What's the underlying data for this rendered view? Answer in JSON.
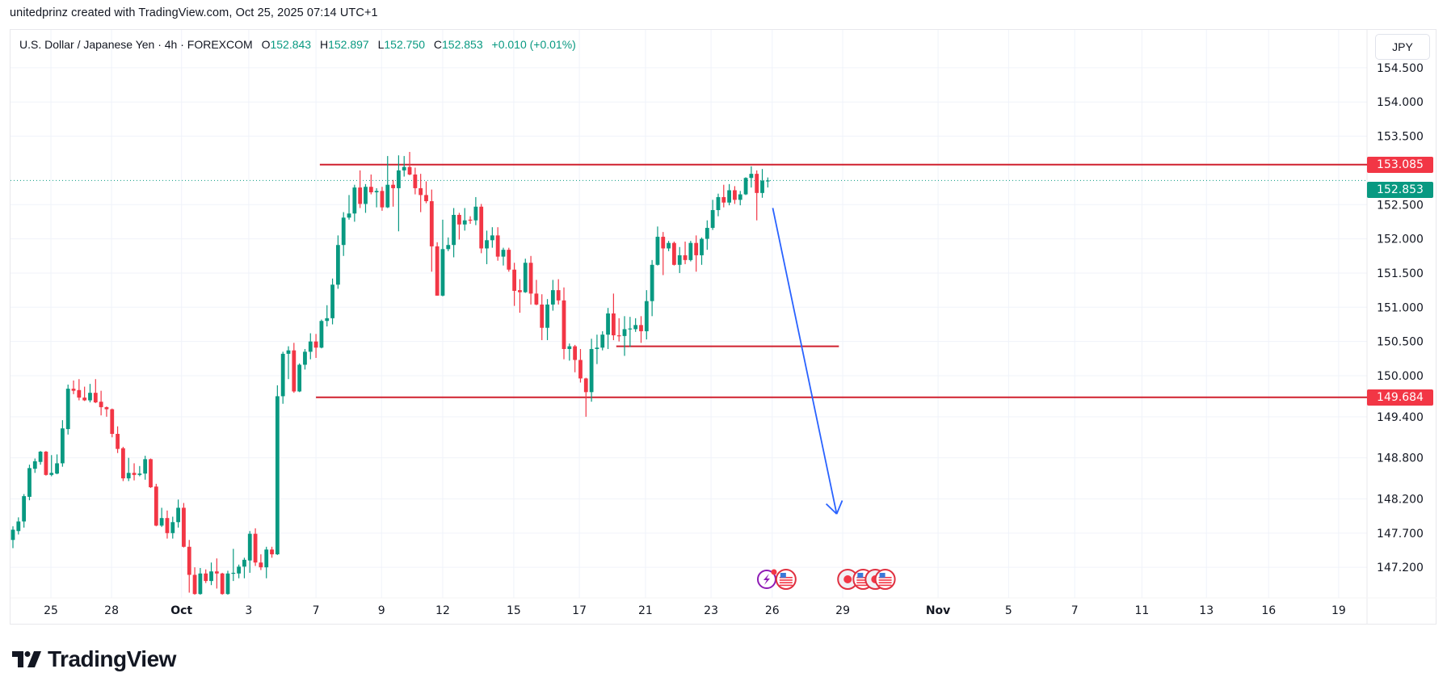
{
  "attribution": "unitedprinz created with TradingView.com, Oct 25, 2025 07:14 UTC+1",
  "legend": {
    "symbol": "U.S. Dollar / Japanese Yen · 4h · FOREXCOM",
    "o_label": "O",
    "o": "152.843",
    "h_label": "H",
    "h": "152.897",
    "l_label": "L",
    "l": "152.750",
    "c_label": "C",
    "c": "152.853",
    "change": "+0.010 (+0.01%)"
  },
  "currency": "JPY",
  "colors": {
    "up": "#089981",
    "down": "#f23645",
    "level": "#d0202f",
    "arrow": "#2962ff",
    "grid": "#f0f3fa"
  },
  "price_labels": {
    "resistance": "153.085",
    "last": "152.853",
    "support": "149.684"
  },
  "logo_text": "TradingView",
  "chart_data": {
    "type": "candlestick",
    "title": "U.S. Dollar / Japanese Yen · 4h · FOREXCOM",
    "ylim": [
      146.8,
      154.7
    ],
    "price_ticks": [
      "154.500",
      "154.000",
      "153.500",
      "152.500",
      "152.000",
      "151.500",
      "151.000",
      "150.500",
      "150.000",
      "149.400",
      "148.800",
      "148.200",
      "147.700",
      "147.200"
    ],
    "time_ticks": [
      {
        "label": "25",
        "bold": false,
        "bar": 6.9
      },
      {
        "label": "28",
        "bold": false,
        "bar": 17.9
      },
      {
        "label": "Oct",
        "bold": true,
        "bar": 30.6
      },
      {
        "label": "3",
        "bold": false,
        "bar": 42.8
      },
      {
        "label": "7",
        "bold": false,
        "bar": 55
      },
      {
        "label": "9",
        "bold": false,
        "bar": 66.9
      },
      {
        "label": "12",
        "bold": false,
        "bar": 78
      },
      {
        "label": "15",
        "bold": false,
        "bar": 90.9
      },
      {
        "label": "17",
        "bold": false,
        "bar": 102.8
      },
      {
        "label": "21",
        "bold": false,
        "bar": 114.8
      },
      {
        "label": "23",
        "bold": false,
        "bar": 126.7
      },
      {
        "label": "26",
        "bold": false,
        "bar": 137.8
      },
      {
        "label": "29",
        "bold": false,
        "bar": 150.6
      },
      {
        "label": "Nov",
        "bold": true,
        "bar": 167.9
      },
      {
        "label": "5",
        "bold": false,
        "bar": 180.7
      },
      {
        "label": "7",
        "bold": false,
        "bar": 192.7
      },
      {
        "label": "11",
        "bold": false,
        "bar": 204.9
      },
      {
        "label": "13",
        "bold": false,
        "bar": 216.6
      },
      {
        "label": "16",
        "bold": false,
        "bar": 227.9
      },
      {
        "label": "19",
        "bold": false,
        "bar": 240.6
      }
    ],
    "candles_ohlc": [
      [
        147.6,
        147.8,
        147.48,
        147.75
      ],
      [
        147.73,
        147.93,
        147.68,
        147.87
      ],
      [
        147.87,
        148.27,
        147.78,
        148.24
      ],
      [
        148.23,
        148.7,
        148.18,
        148.65
      ],
      [
        148.64,
        148.79,
        148.58,
        148.75
      ],
      [
        148.74,
        148.9,
        148.7,
        148.89
      ],
      [
        148.89,
        148.9,
        148.54,
        148.55
      ],
      [
        148.55,
        148.84,
        148.53,
        148.58
      ],
      [
        148.57,
        148.85,
        148.56,
        148.72
      ],
      [
        148.72,
        149.35,
        148.67,
        149.23
      ],
      [
        149.22,
        149.87,
        149.14,
        149.81
      ],
      [
        149.81,
        149.93,
        149.73,
        149.78
      ],
      [
        149.79,
        149.95,
        149.64,
        149.68
      ],
      [
        149.68,
        149.84,
        149.63,
        149.64
      ],
      [
        149.64,
        149.88,
        149.61,
        149.75
      ],
      [
        149.75,
        149.95,
        149.6,
        149.61
      ],
      [
        149.62,
        149.78,
        149.42,
        149.54
      ],
      [
        149.54,
        149.55,
        149.4,
        149.51
      ],
      [
        149.51,
        149.52,
        149.1,
        149.15
      ],
      [
        149.15,
        149.26,
        148.87,
        148.93
      ],
      [
        148.94,
        148.96,
        148.46,
        148.5
      ],
      [
        148.5,
        148.8,
        148.46,
        148.58
      ],
      [
        148.58,
        148.72,
        148.47,
        148.55
      ],
      [
        148.55,
        148.68,
        148.53,
        148.57
      ],
      [
        148.57,
        148.83,
        148.48,
        148.78
      ],
      [
        148.78,
        148.79,
        148.36,
        148.37
      ],
      [
        148.38,
        148.42,
        147.8,
        147.81
      ],
      [
        147.81,
        148.07,
        147.79,
        147.92
      ],
      [
        147.92,
        148.03,
        147.62,
        147.7
      ],
      [
        147.7,
        147.94,
        147.62,
        147.86
      ],
      [
        147.86,
        148.19,
        147.78,
        148.07
      ],
      [
        148.07,
        148.14,
        147.49,
        147.5
      ],
      [
        147.5,
        147.6,
        146.83,
        147.09
      ],
      [
        147.09,
        147.2,
        146.8,
        146.81
      ],
      [
        146.81,
        147.19,
        146.8,
        147.11
      ],
      [
        147.11,
        147.17,
        146.97,
        147.0
      ],
      [
        147.0,
        147.27,
        146.94,
        147.14
      ],
      [
        147.14,
        147.33,
        146.89,
        147.11
      ],
      [
        147.11,
        147.12,
        146.8,
        146.81
      ],
      [
        146.81,
        147.15,
        146.8,
        147.11
      ],
      [
        147.11,
        147.47,
        147.0,
        147.12
      ],
      [
        147.11,
        147.24,
        147.04,
        147.21
      ],
      [
        147.21,
        147.34,
        147.04,
        147.31
      ],
      [
        147.3,
        147.73,
        147.12,
        147.69
      ],
      [
        147.69,
        147.77,
        147.22,
        147.27
      ],
      [
        147.27,
        147.39,
        147.16,
        147.2
      ],
      [
        147.2,
        147.5,
        147.04,
        147.46
      ],
      [
        147.46,
        147.5,
        147.34,
        147.39
      ],
      [
        147.39,
        149.86,
        147.38,
        149.7
      ],
      [
        149.7,
        150.35,
        149.59,
        150.32
      ],
      [
        150.32,
        150.43,
        149.95,
        150.37
      ],
      [
        150.37,
        150.48,
        149.75,
        149.77
      ],
      [
        149.77,
        150.18,
        149.76,
        150.16
      ],
      [
        150.16,
        150.39,
        150.09,
        150.35
      ],
      [
        150.35,
        150.62,
        150.24,
        150.5
      ],
      [
        150.5,
        150.61,
        150.26,
        150.41
      ],
      [
        150.41,
        150.82,
        150.4,
        150.8
      ],
      [
        150.8,
        151.03,
        150.72,
        150.84
      ],
      [
        150.84,
        151.42,
        150.75,
        151.33
      ],
      [
        151.33,
        152.05,
        151.27,
        151.91
      ],
      [
        151.91,
        152.39,
        151.75,
        152.31
      ],
      [
        152.31,
        152.64,
        152.28,
        152.37
      ],
      [
        152.37,
        152.79,
        152.25,
        152.75
      ],
      [
        152.75,
        153.0,
        152.45,
        152.51
      ],
      [
        152.51,
        152.8,
        152.38,
        152.76
      ],
      [
        152.76,
        152.94,
        152.65,
        152.68
      ],
      [
        152.68,
        152.74,
        152.46,
        152.7
      ],
      [
        152.7,
        152.76,
        152.41,
        152.46
      ],
      [
        152.46,
        153.21,
        152.45,
        152.79
      ],
      [
        152.79,
        152.86,
        152.47,
        152.74
      ],
      [
        152.74,
        153.22,
        152.11,
        153.0
      ],
      [
        153.0,
        153.21,
        152.91,
        153.05
      ],
      [
        153.05,
        153.27,
        152.93,
        152.94
      ],
      [
        152.94,
        153.04,
        152.65,
        152.74
      ],
      [
        152.74,
        152.95,
        152.39,
        152.64
      ],
      [
        152.64,
        152.84,
        152.52,
        152.55
      ],
      [
        152.55,
        152.72,
        151.52,
        151.89
      ],
      [
        151.89,
        151.95,
        151.17,
        151.17
      ],
      [
        151.17,
        152.28,
        151.16,
        151.85
      ],
      [
        151.85,
        152.02,
        151.82,
        151.91
      ],
      [
        151.91,
        152.45,
        151.73,
        152.35
      ],
      [
        152.35,
        152.38,
        151.99,
        152.21
      ],
      [
        152.21,
        152.45,
        152.12,
        152.27
      ],
      [
        152.28,
        152.33,
        152.22,
        152.27
      ],
      [
        152.27,
        152.61,
        152.2,
        152.47
      ],
      [
        152.47,
        152.51,
        151.79,
        151.86
      ],
      [
        151.86,
        152.12,
        151.63,
        151.98
      ],
      [
        151.98,
        152.17,
        151.87,
        152.05
      ],
      [
        152.05,
        152.17,
        151.68,
        151.74
      ],
      [
        151.74,
        151.87,
        151.61,
        151.84
      ],
      [
        151.84,
        151.87,
        151.52,
        151.55
      ],
      [
        151.55,
        151.65,
        151.02,
        151.24
      ],
      [
        151.25,
        151.41,
        150.92,
        151.22
      ],
      [
        151.22,
        151.71,
        151.21,
        151.65
      ],
      [
        151.65,
        151.75,
        151.04,
        151.2
      ],
      [
        151.2,
        151.4,
        151.03,
        151.04
      ],
      [
        151.04,
        151.19,
        150.52,
        150.7
      ],
      [
        150.7,
        151.12,
        150.52,
        151.04
      ],
      [
        151.04,
        151.4,
        150.95,
        151.25
      ],
      [
        151.25,
        151.41,
        151.04,
        151.1
      ],
      [
        151.1,
        151.29,
        150.24,
        150.39
      ],
      [
        150.39,
        150.47,
        150.22,
        150.43
      ],
      [
        150.43,
        150.45,
        150.05,
        150.23
      ],
      [
        150.23,
        150.39,
        149.9,
        149.96
      ],
      [
        149.96,
        149.97,
        149.4,
        149.76
      ],
      [
        149.76,
        150.54,
        149.62,
        150.39
      ],
      [
        150.39,
        150.6,
        150.17,
        150.41
      ],
      [
        150.41,
        150.65,
        150.37,
        150.6
      ],
      [
        150.6,
        150.99,
        150.39,
        150.91
      ],
      [
        150.91,
        151.2,
        150.52,
        150.59
      ],
      [
        150.59,
        150.84,
        150.5,
        150.58
      ],
      [
        150.58,
        150.87,
        150.29,
        150.68
      ],
      [
        150.68,
        150.86,
        150.42,
        150.69
      ],
      [
        150.68,
        150.84,
        150.64,
        150.74
      ],
      [
        150.74,
        150.87,
        150.48,
        150.65
      ],
      [
        150.65,
        151.25,
        150.53,
        151.09
      ],
      [
        151.09,
        151.69,
        150.87,
        151.62
      ],
      [
        151.62,
        152.18,
        151.61,
        152.03
      ],
      [
        152.03,
        152.1,
        151.47,
        151.86
      ],
      [
        151.86,
        151.97,
        151.82,
        151.94
      ],
      [
        151.94,
        151.96,
        151.61,
        151.62
      ],
      [
        151.62,
        151.88,
        151.5,
        151.76
      ],
      [
        151.76,
        151.96,
        151.63,
        151.69
      ],
      [
        151.69,
        151.97,
        151.67,
        151.94
      ],
      [
        151.94,
        152.05,
        151.52,
        151.76
      ],
      [
        151.76,
        152.02,
        151.62,
        152.0
      ],
      [
        152.0,
        152.27,
        151.84,
        152.16
      ],
      [
        152.16,
        152.57,
        152.13,
        152.42
      ],
      [
        152.42,
        152.66,
        152.33,
        152.61
      ],
      [
        152.61,
        152.79,
        152.46,
        152.53
      ],
      [
        152.53,
        152.8,
        152.49,
        152.71
      ],
      [
        152.71,
        152.77,
        152.51,
        152.57
      ],
      [
        152.57,
        152.7,
        152.49,
        152.65
      ],
      [
        152.65,
        152.9,
        152.64,
        152.89
      ],
      [
        152.89,
        153.06,
        152.75,
        152.95
      ],
      [
        152.95,
        153.0,
        152.27,
        152.67
      ],
      [
        152.67,
        153.02,
        152.6,
        152.85
      ],
      [
        152.843,
        152.897,
        152.75,
        152.853
      ]
    ],
    "last_price": 152.853,
    "horizontal_levels": [
      {
        "name": "resistance",
        "price": 153.085,
        "from_bar": 55.7,
        "to_bar": "axis"
      },
      {
        "name": "mid-support",
        "price": 150.43,
        "from_bar": 109.5,
        "to_bar": 149.9
      },
      {
        "name": "support",
        "price": 149.684,
        "from_bar": 55,
        "to_bar": "axis"
      }
    ],
    "arrow": {
      "from": {
        "bar": 137.9,
        "price": 152.45
      },
      "to": {
        "bar": 149.5,
        "price": 147.98
      }
    },
    "events": [
      {
        "type": "earnings-lightning",
        "bar": 136.8
      },
      {
        "type": "us-flag",
        "bar": 140.3
      },
      {
        "type": "jp-flag",
        "bar": 151.5
      },
      {
        "type": "us-flag",
        "bar": 154.3
      },
      {
        "type": "jp-flag",
        "bar": 156.5
      },
      {
        "type": "us-flag",
        "bar": 158.3
      }
    ]
  }
}
